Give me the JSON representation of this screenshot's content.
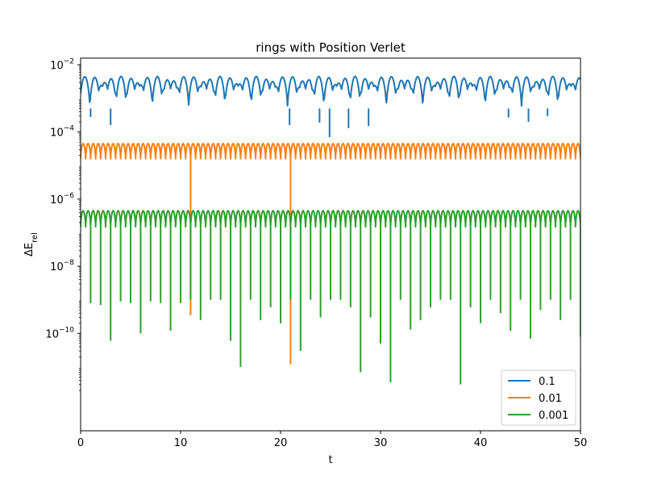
{
  "chart_data": {
    "type": "line",
    "title": "rings with Position Verlet",
    "xlabel": "t",
    "ylabel": "ΔE_rel",
    "ylabel_main": "ΔE",
    "ylabel_sub": "rel",
    "xlim": [
      0,
      50
    ],
    "ylim_log10": [
      -12.9,
      -1.8
    ],
    "yscale": "log",
    "grid": false,
    "legend_position": "lower-right",
    "x_ticks": [
      {
        "label": "0",
        "value": 0
      },
      {
        "label": "10",
        "value": 10
      },
      {
        "label": "20",
        "value": 20
      },
      {
        "label": "30",
        "value": 30
      },
      {
        "label": "40",
        "value": 40
      },
      {
        "label": "50",
        "value": 50
      }
    ],
    "y_ticks": [
      {
        "base": "10",
        "exp": "−2",
        "value": 0.01
      },
      {
        "base": "10",
        "exp": "−4",
        "value": 0.0001
      },
      {
        "base": "10",
        "exp": "−6",
        "value": 1e-06
      },
      {
        "base": "10",
        "exp": "−8",
        "value": 1e-08
      },
      {
        "base": "10",
        "exp": "−10",
        "value": 1e-10
      }
    ],
    "series": [
      {
        "name": "0.1",
        "color": "#1f77b4",
        "min_value": 0.0005,
        "max_value": 0.0045,
        "period": 0.9,
        "dips": [
          {
            "t": 1.0,
            "value": 0.00028
          },
          {
            "t": 3.0,
            "value": 0.00016
          },
          {
            "t": 20.9,
            "value": 0.00016
          },
          {
            "t": 23.9,
            "value": 0.00019
          },
          {
            "t": 24.9,
            "value": 7e-05
          },
          {
            "t": 26.8,
            "value": 0.00013
          },
          {
            "t": 28.8,
            "value": 0.00015
          },
          {
            "t": 42.8,
            "value": 0.00027
          },
          {
            "t": 44.8,
            "value": 0.0002
          },
          {
            "t": 46.7,
            "value": 0.0003
          }
        ]
      },
      {
        "name": "0.01",
        "color": "#ff7f0e",
        "min_value": 1.6e-05,
        "max_value": 4.5e-05,
        "period": 0.5,
        "dips": [
          {
            "t": 11.0,
            "value": 3.5e-10
          },
          {
            "t": 21.0,
            "value": 1.2e-11
          }
        ]
      },
      {
        "name": "0.001",
        "color": "#2ca02c",
        "min_value": 1.5e-07,
        "max_value": 4.5e-07,
        "period": 0.5,
        "dips": [
          {
            "t": 1.0,
            "value": 8e-10
          },
          {
            "t": 2.0,
            "value": 7e-10
          },
          {
            "t": 3.0,
            "value": 6e-11
          },
          {
            "t": 4.0,
            "value": 9e-10
          },
          {
            "t": 5.0,
            "value": 8e-10
          },
          {
            "t": 6.0,
            "value": 1e-10
          },
          {
            "t": 7.0,
            "value": 9e-10
          },
          {
            "t": 8.0,
            "value": 8e-10
          },
          {
            "t": 9.0,
            "value": 1.2e-10
          },
          {
            "t": 10.0,
            "value": 8e-10
          },
          {
            "t": 11.0,
            "value": 1e-09
          },
          {
            "t": 12.0,
            "value": 2.5e-10
          },
          {
            "t": 13.0,
            "value": 1e-09
          },
          {
            "t": 14.0,
            "value": 1e-09
          },
          {
            "t": 15.0,
            "value": 6e-11
          },
          {
            "t": 16.0,
            "value": 1e-11
          },
          {
            "t": 17.0,
            "value": 1e-09
          },
          {
            "t": 18.0,
            "value": 2.5e-10
          },
          {
            "t": 19.0,
            "value": 6e-10
          },
          {
            "t": 20.0,
            "value": 2e-10
          },
          {
            "t": 21.0,
            "value": 1e-09
          },
          {
            "t": 22.0,
            "value": 3e-11
          },
          {
            "t": 23.0,
            "value": 1e-09
          },
          {
            "t": 24.0,
            "value": 3e-10
          },
          {
            "t": 25.0,
            "value": 1e-09
          },
          {
            "t": 26.0,
            "value": 1e-09
          },
          {
            "t": 27.0,
            "value": 6e-10
          },
          {
            "t": 28.0,
            "value": 7e-12
          },
          {
            "t": 29.0,
            "value": 3e-10
          },
          {
            "t": 30.0,
            "value": 5e-11
          },
          {
            "t": 31.0,
            "value": 3.5e-12
          },
          {
            "t": 32.0,
            "value": 1e-09
          },
          {
            "t": 33.0,
            "value": 1.3e-10
          },
          {
            "t": 34.0,
            "value": 2.5e-10
          },
          {
            "t": 35.0,
            "value": 6e-10
          },
          {
            "t": 36.0,
            "value": 1e-09
          },
          {
            "t": 37.0,
            "value": 1e-09
          },
          {
            "t": 38.0,
            "value": 3e-12
          },
          {
            "t": 39.0,
            "value": 6e-10
          },
          {
            "t": 40.0,
            "value": 2e-10
          },
          {
            "t": 41.0,
            "value": 1e-09
          },
          {
            "t": 42.0,
            "value": 4e-10
          },
          {
            "t": 43.0,
            "value": 1.2e-10
          },
          {
            "t": 44.0,
            "value": 1e-09
          },
          {
            "t": 45.0,
            "value": 7e-11
          },
          {
            "t": 46.0,
            "value": 5e-10
          },
          {
            "t": 47.0,
            "value": 1e-09
          },
          {
            "t": 48.0,
            "value": 2.5e-10
          },
          {
            "t": 49.0,
            "value": 1e-09
          },
          {
            "t": 50.0,
            "value": 8e-11
          }
        ]
      }
    ]
  }
}
